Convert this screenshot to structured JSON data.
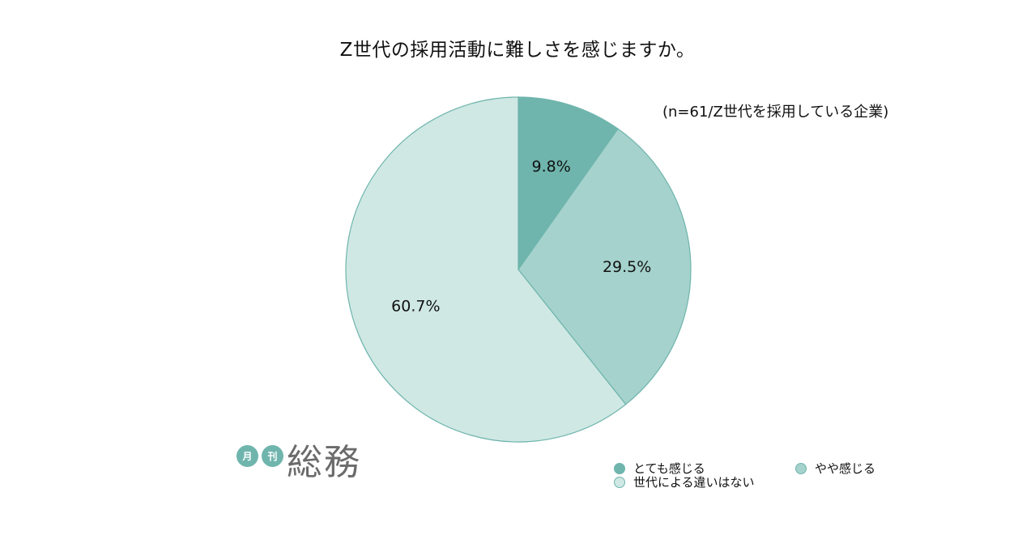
{
  "chart_data": {
    "type": "pie",
    "title": "Z世代の採用活動に難しさを感じますか。",
    "note": "(n=61/Z世代を採用している企業)",
    "slices": [
      {
        "label": "とても感じる",
        "value": 9.8,
        "value_label": "9.8%",
        "color": "#6fb5ad"
      },
      {
        "label": "やや感じる",
        "value": 29.5,
        "value_label": "29.5%",
        "color": "#a5d2cc"
      },
      {
        "label": "世代による違いはない",
        "value": 60.7,
        "value_label": "60.7%",
        "color": "#cfe8e4"
      }
    ],
    "legend_position": "bottom-right",
    "stroke_color": "#6fb5ad"
  },
  "logo": {
    "badge1": "月",
    "badge2": "刊",
    "main": "総務"
  }
}
